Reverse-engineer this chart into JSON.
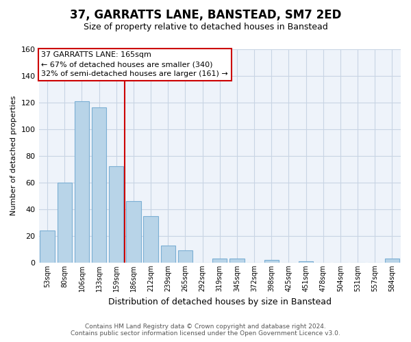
{
  "title": "37, GARRATTS LANE, BANSTEAD, SM7 2ED",
  "subtitle": "Size of property relative to detached houses in Banstead",
  "xlabel": "Distribution of detached houses by size in Banstead",
  "ylabel": "Number of detached properties",
  "bar_labels": [
    "53sqm",
    "80sqm",
    "106sqm",
    "133sqm",
    "159sqm",
    "186sqm",
    "212sqm",
    "239sqm",
    "265sqm",
    "292sqm",
    "319sqm",
    "345sqm",
    "372sqm",
    "398sqm",
    "425sqm",
    "451sqm",
    "478sqm",
    "504sqm",
    "531sqm",
    "557sqm",
    "584sqm"
  ],
  "bar_values": [
    24,
    60,
    121,
    116,
    72,
    46,
    35,
    13,
    9,
    0,
    3,
    3,
    0,
    2,
    0,
    1,
    0,
    0,
    0,
    0,
    3
  ],
  "bar_color": "#b8d4e8",
  "bar_edge_color": "#7bafd4",
  "ylim": [
    0,
    160
  ],
  "yticks": [
    0,
    20,
    40,
    60,
    80,
    100,
    120,
    140,
    160
  ],
  "vline_x": 4.5,
  "vline_color": "#cc0000",
  "annotation_title": "37 GARRATTS LANE: 165sqm",
  "annotation_line1": "← 67% of detached houses are smaller (340)",
  "annotation_line2": "32% of semi-detached houses are larger (161) →",
  "footer_line1": "Contains HM Land Registry data © Crown copyright and database right 2024.",
  "footer_line2": "Contains public sector information licensed under the Open Government Licence v3.0.",
  "bg_color": "#ffffff",
  "plot_bg_color": "#eef3fa",
  "grid_color": "#c8d4e4",
  "title_fontsize": 12,
  "subtitle_fontsize": 9
}
